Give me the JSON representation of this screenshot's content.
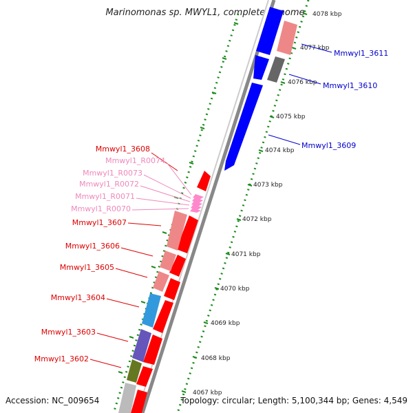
{
  "title": "Marinomonas sp. MWYL1, complete genome",
  "footer": {
    "accession": "Accession: NC_009654",
    "topology": "Topology: circular; Length: 5,100,344 bp; Genes: 4,549"
  },
  "scale_labels": [
    "4078 kbp",
    "4077 kbp",
    "4076 kbp",
    "4075 kbp",
    "4074 kbp",
    "4073 kbp",
    "4072 kbp",
    "4071 kbp",
    "4070 kbp",
    "4069 kbp",
    "4068 kbp",
    "4067 kbp"
  ],
  "right_labels": [
    {
      "text": "Mmwyl1_3611",
      "color": "#0000cc"
    },
    {
      "text": "Mmwyl1_3610",
      "color": "#0000cc"
    },
    {
      "text": "Mmwyl1_3609",
      "color": "#0000cc"
    }
  ],
  "left_labels": [
    {
      "text": "Mmwyl1_3608",
      "color": "#dd0000"
    },
    {
      "text": "Mmwyl1_R0074",
      "color": "#ee88bb"
    },
    {
      "text": "Mmwyl1_R0073",
      "color": "#ee88bb"
    },
    {
      "text": "Mmwyl1_R0072",
      "color": "#ee88bb"
    },
    {
      "text": "Mmwyl1_R0071",
      "color": "#ee88bb"
    },
    {
      "text": "Mmwyl1_R0070",
      "color": "#ee88bb"
    },
    {
      "text": "Mmwyl1_3607",
      "color": "#dd0000"
    },
    {
      "text": "Mmwyl1_3606",
      "color": "#dd0000"
    },
    {
      "text": "Mmwyl1_3605",
      "color": "#dd0000"
    },
    {
      "text": "Mmwyl1_3604",
      "color": "#dd0000"
    },
    {
      "text": "Mmwyl1_3603",
      "color": "#dd0000"
    },
    {
      "text": "Mmwyl1_3602",
      "color": "#dd0000"
    }
  ],
  "colors": {
    "forward_strand": "#ff0000",
    "reverse_strand": "#0000ff",
    "backbone": "#888888",
    "scale_dots": "#1a8a1a",
    "rna": "#ff88cc",
    "cog_pink": "#ee8888",
    "cog_gray": "#666666",
    "cog_blue": "#3399dd",
    "cog_purple": "#6655bb",
    "cog_olive": "#667722",
    "cog_lightgray": "#bbbbbb"
  }
}
